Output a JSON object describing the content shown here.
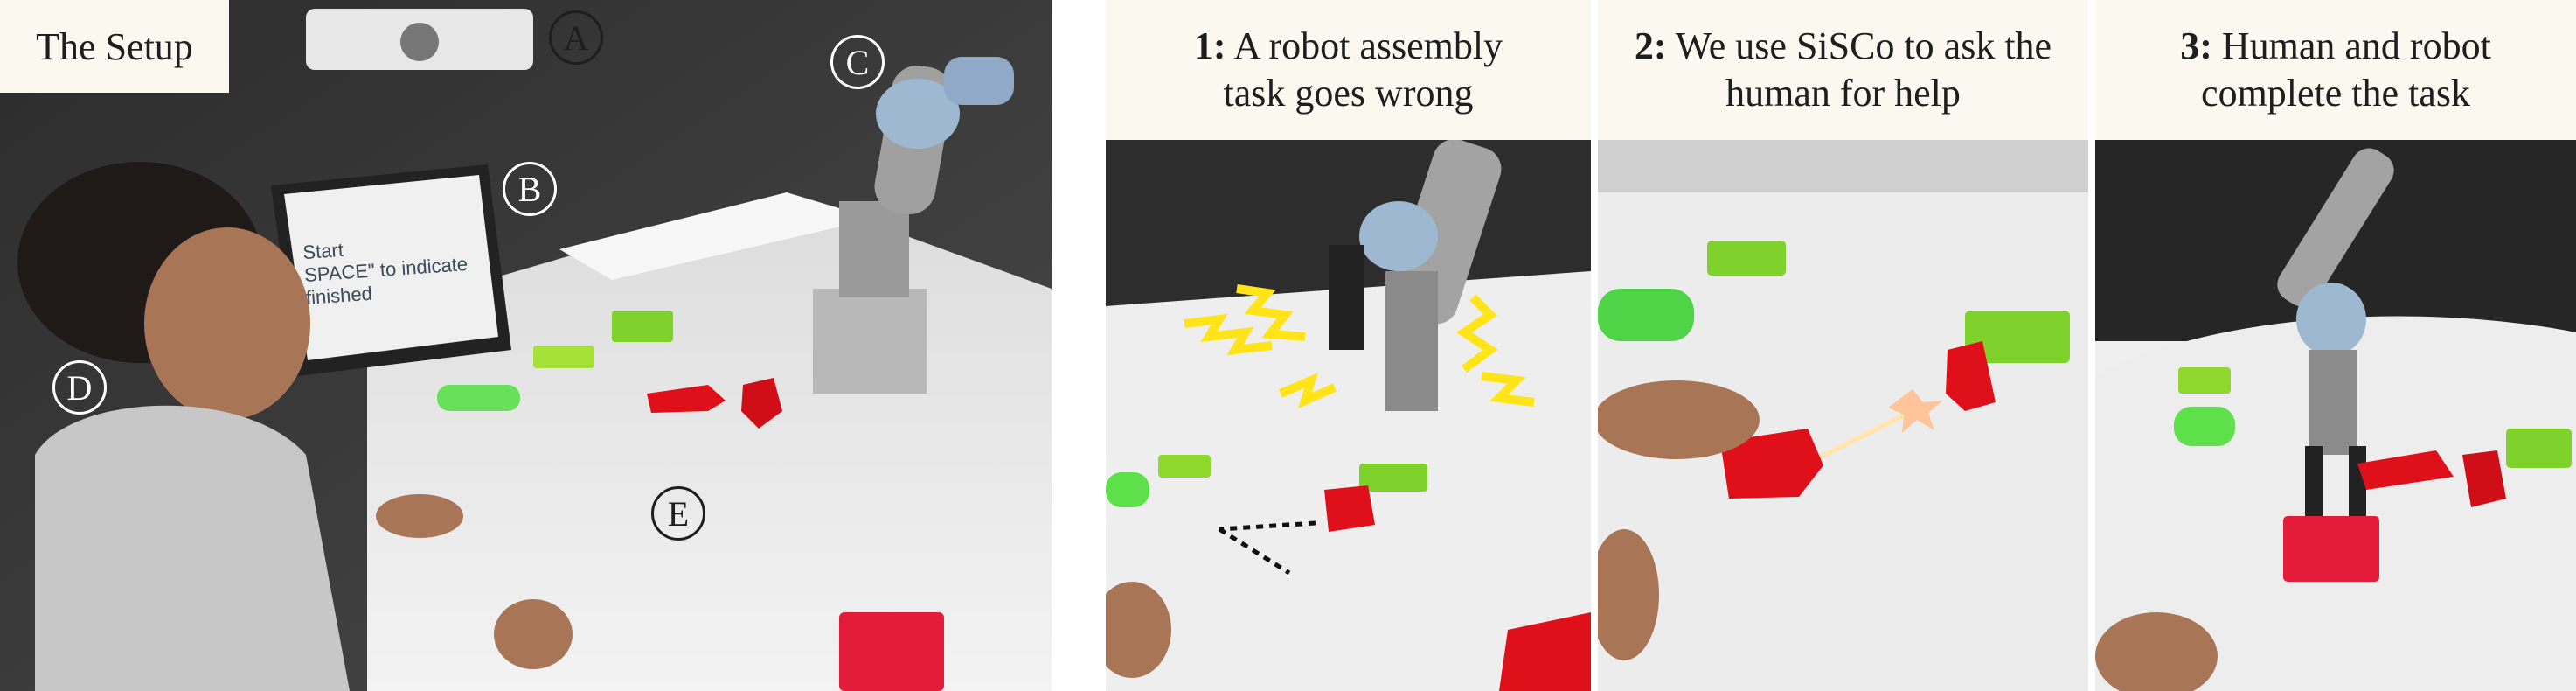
{
  "setup": {
    "title": "The Setup",
    "callouts": [
      "A",
      "B",
      "C",
      "D",
      "E"
    ],
    "screen_text": {
      "line1": "Start",
      "line2": "SPACE\" to indicate",
      "line3": "finished"
    }
  },
  "steps": [
    {
      "num": "1:",
      "line1": " A robot assembly",
      "line2": "task goes wrong"
    },
    {
      "num": "2:",
      "line1": " We use SiSCo to ask the",
      "line2": "human for help"
    },
    {
      "num": "3:",
      "line1": " Human and robot",
      "line2": "complete the task"
    }
  ],
  "colors": {
    "header_bg": "#fbf8ef",
    "table": "#eeeeee",
    "robot_red": "#e0101a",
    "robot_green": "#7fd12b",
    "warning_yellow": "#ffe419"
  }
}
